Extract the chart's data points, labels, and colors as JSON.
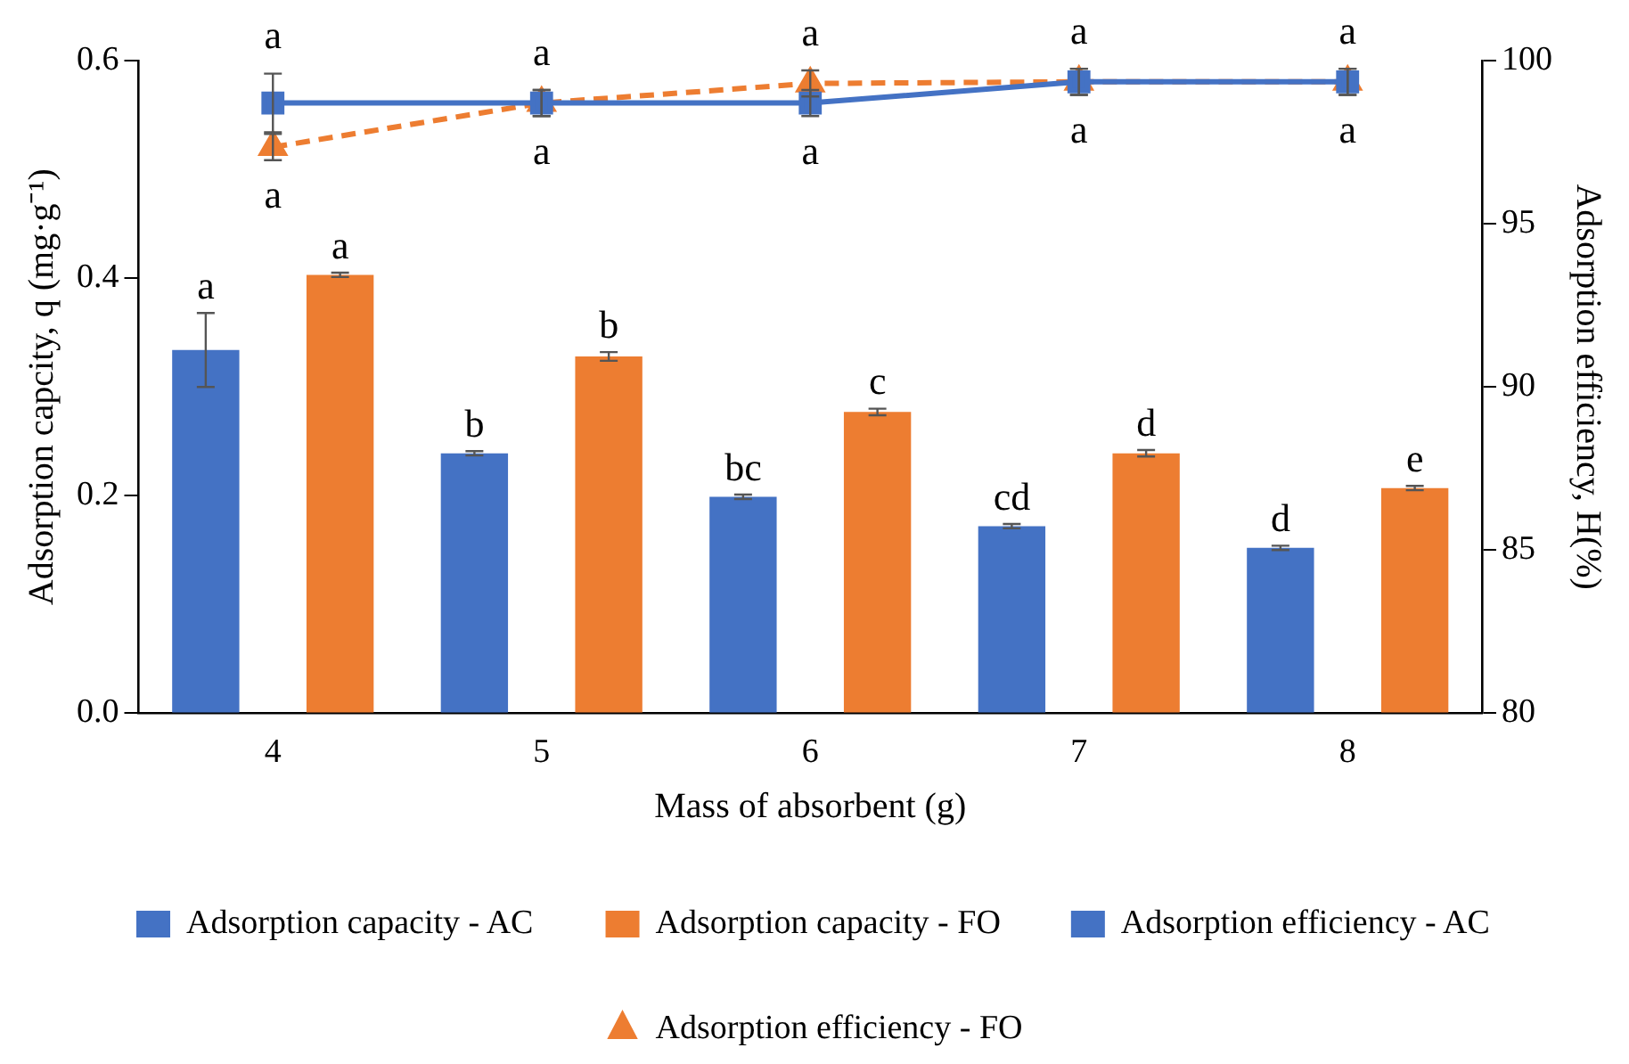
{
  "chart_data": {
    "type": "bar",
    "xlabel": "Mass of absorbent (g)",
    "ylabel": "Adsorption capcity, q (mg·g⁻¹)",
    "y2label": "Adsorption efficiency, H(%)",
    "categories": [
      "4",
      "5",
      "6",
      "7",
      "8"
    ],
    "series": [
      {
        "name": "Adsorption capacity - AC",
        "color": "#4472c4",
        "values": [
          0.334,
          0.239,
          0.199,
          0.172,
          0.152
        ],
        "errors": [
          0.034,
          0.002,
          0.002,
          0.002,
          0.002
        ],
        "value_labels": [
          "a",
          "b",
          "bc",
          "cd",
          "d"
        ]
      },
      {
        "name": "Adsorption capacity - FO",
        "color": "#ed7d31",
        "values": [
          0.403,
          0.328,
          0.277,
          0.239,
          0.207
        ],
        "errors": [
          0.002,
          0.004,
          0.003,
          0.003,
          0.002
        ],
        "value_labels": [
          "a",
          "b",
          "c",
          "d",
          "e"
        ]
      },
      {
        "name": "Adsorption efficiency - AC",
        "type": "line",
        "axis": "y2",
        "color": "#4472c4",
        "marker": "square",
        "line_style": "solid",
        "values": [
          98.7,
          98.7,
          98.7,
          99.35,
          99.35
        ],
        "errors": [
          0.9,
          0.4,
          0.4,
          0.4,
          0.4
        ],
        "value_labels": [
          "a",
          "a",
          "a",
          "a",
          "a"
        ]
      },
      {
        "name": "Adsorption efficiency - FO",
        "type": "line",
        "axis": "y2",
        "color": "#ed7d31",
        "marker": "triangle",
        "line_style": "dashed",
        "values": [
          97.35,
          98.7,
          99.3,
          99.35,
          99.35
        ],
        "errors": [
          0.4,
          0.4,
          0.4,
          0.4,
          0.4
        ],
        "value_labels": [
          "a",
          "a",
          "a",
          "a",
          "a"
        ]
      }
    ],
    "ylim": [
      0,
      0.6
    ],
    "yticks": [
      {
        "value": 0,
        "label": "0.0"
      },
      {
        "value": 0.2,
        "label": "0.2"
      },
      {
        "value": 0.4,
        "label": "0.4"
      },
      {
        "value": 0.6,
        "label": "0.6"
      }
    ],
    "y2lim": [
      80,
      100
    ],
    "y2ticks": [
      80,
      85,
      90,
      95,
      100
    ],
    "grid": false,
    "legend": "bottom"
  }
}
